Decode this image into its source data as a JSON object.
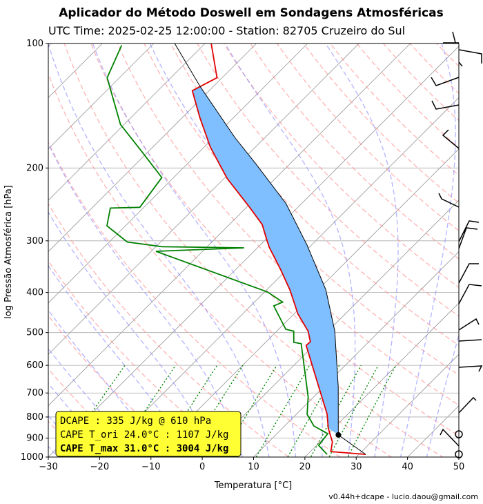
{
  "chart_data": {
    "type": "skewt",
    "title": "Aplicador do Método Doswell em Sondagens Atmosféricas",
    "subtitle": "UTC Time: 2025-02-25 12:00:00 - Station: 82705 Cruzeiro do Sul",
    "xlabel": "Temperatura [°C]",
    "ylabel": "log Pressão Atmosférica [hPa]",
    "footer": "v0.44h+dcape  -  lucio.daou@gmail.com",
    "yscale": "log",
    "grid": true,
    "xlim": [
      -30,
      50
    ],
    "ylim": [
      1000,
      100
    ],
    "xticks": [
      {
        "value": -30,
        "label": "−30"
      },
      {
        "value": -20,
        "label": "−20"
      },
      {
        "value": -10,
        "label": "−10"
      },
      0,
      10,
      20,
      30,
      40,
      50
    ],
    "yticks": [
      1000,
      900,
      800,
      700,
      600,
      500,
      400,
      300,
      200,
      100
    ],
    "shade_color": "#7fbfff",
    "series": [
      {
        "color": "#e00000",
        "pressure": [
          985,
          970,
          919,
          851,
          788,
          676,
          537,
          526,
          496,
          451,
          394,
          351,
          311,
          296,
          274,
          249,
          212,
          178,
          151,
          130,
          121,
          100
        ],
        "values": [
          31.3,
          24.0,
          22.4,
          18.9,
          16.0,
          9.0,
          -1.5,
          -1.4,
          -3.9,
          -9.2,
          -15.5,
          -21.4,
          -27.8,
          -30.1,
          -33.6,
          -39.4,
          -49.4,
          -58.8,
          -66.6,
          -73.3,
          -71.0,
          -78.8
        ]
      },
      {
        "color": "#008000",
        "pressure": [
          985,
          937,
          878,
          841,
          788,
          715,
          532,
          528,
          496,
          491,
          431,
          422,
          399,
          318,
          312,
          310,
          302,
          276,
          250,
          249,
          211,
          181,
          157,
          121,
          101
        ],
        "values": [
          23.8,
          20.4,
          19.9,
          15.7,
          12.1,
          8.9,
          -2.8,
          -4.5,
          -6.7,
          -8.6,
          -15.5,
          -14.5,
          -19.4,
          -49.1,
          -32.6,
          -48.8,
          -56.5,
          -63.6,
          -66.4,
          -60.8,
          -62.3,
          -71.8,
          -80.7,
          -92.4,
          -95.9
        ]
      },
      {
        "color": "#000000",
        "pressure": [
          985,
          884,
          676,
          496,
          394,
          307,
          244,
          195,
          169,
          127,
          100
        ],
        "values": [
          31.3,
          22.2,
          12.8,
          1.3,
          -8.5,
          -20.9,
          -33.0,
          -46.8,
          -55.8,
          -72.6,
          -85.9
        ]
      }
    ],
    "info_box": [
      "DCAPE : 335 J/kg @ 610 hPa",
      "CAPE T_ori 24.0°C : 1107 J/kg",
      "CAPE T_max 31.0°C : 3004 J/kg"
    ],
    "info_color": "#ffff33"
  }
}
